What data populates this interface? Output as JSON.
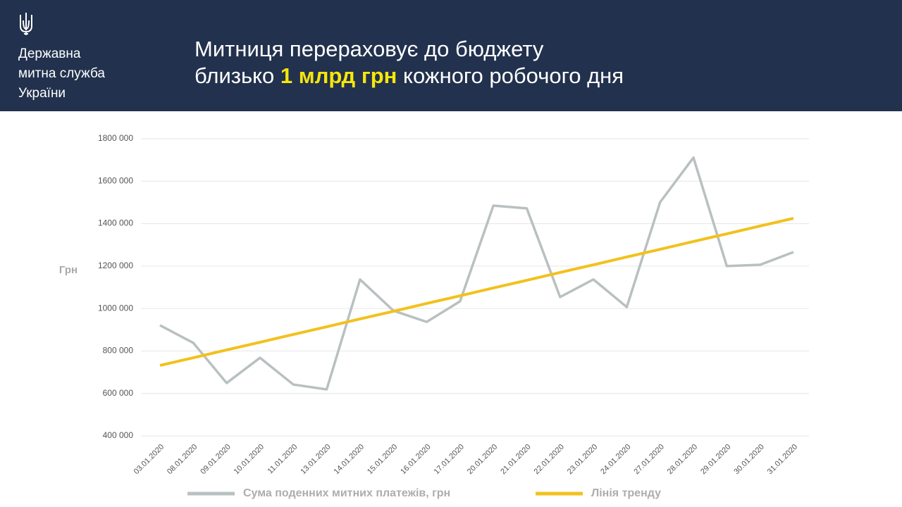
{
  "header": {
    "org": [
      "Державна",
      "митна служба",
      "України"
    ],
    "title": {
      "line1": "Митниця перераховує до бюджету",
      "line2_start": "близько ",
      "highlight": "1 млрд грн",
      "line2_end": " кожного робочого дня"
    }
  },
  "chart_data": {
    "type": "line",
    "y_label": "Грн",
    "categories": [
      "03.01.2020",
      "08.01.2020",
      "09.01.2020",
      "10.01.2020",
      "11.01.2020",
      "13.01.2020",
      "14.01.2020",
      "15.01.2020",
      "16.01.2020",
      "17.01.2020",
      "20.01.2020",
      "21.01.2020",
      "22.01.2020",
      "23.01.2020",
      "24.01.2020",
      "27.01.2020",
      "28.01.2020",
      "29.01.2020",
      "30.01.2020",
      "31.01.2020"
    ],
    "series": [
      {
        "name": "Сума поденних митних платежів, грн",
        "color": "#b9c0c1",
        "values": [
          921000,
          838000,
          649000,
          768000,
          642000,
          619000,
          1137000,
          990000,
          937000,
          1034000,
          1485000,
          1472000,
          1054000,
          1137000,
          1007000,
          1501000,
          1711000,
          1200000,
          1206000,
          1266000
        ]
      },
      {
        "name": "Лінія тренду",
        "color": "#f2c11c",
        "values": [
          732000,
          768000,
          805000,
          841000,
          878000,
          914000,
          951000,
          987000,
          1024000,
          1060000,
          1097000,
          1133000,
          1170000,
          1206000,
          1243000,
          1279000,
          1316000,
          1352000,
          1389000,
          1425000
        ]
      }
    ],
    "ylim": [
      400000,
      1800000
    ],
    "yticks": [
      {
        "value": 400000,
        "label": "400 000"
      },
      {
        "value": 600000,
        "label": "600 000"
      },
      {
        "value": 800000,
        "label": "800 000"
      },
      {
        "value": 1000000,
        "label": "1000 000"
      },
      {
        "value": 1200000,
        "label": "1200 000"
      },
      {
        "value": 1400000,
        "label": "1400 000"
      },
      {
        "value": 1600000,
        "label": "1600 000"
      },
      {
        "value": 1800000,
        "label": "1800 000"
      }
    ],
    "grid": true
  }
}
